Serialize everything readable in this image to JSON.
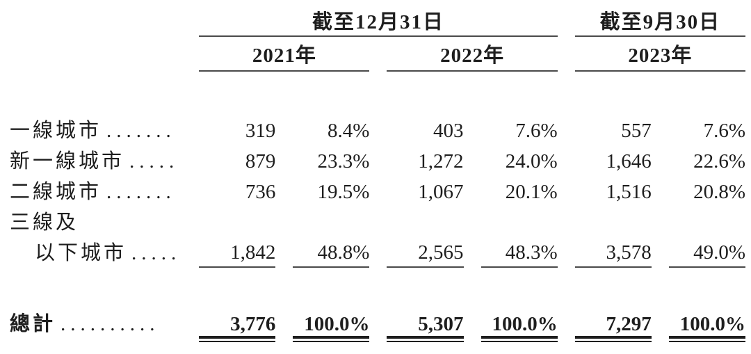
{
  "document": {
    "ink_color": "#1e1e1e",
    "rule_color": "#4a4a4a"
  },
  "table": {
    "header": {
      "groups": [
        {
          "title": "截至12月31日",
          "years": [
            "2021年",
            "2022年"
          ]
        },
        {
          "title": "截至9月30日",
          "years": [
            "2023年"
          ]
        }
      ]
    },
    "rows": [
      {
        "label": "一線城市",
        "leader": ".......",
        "values": [
          "319",
          "8.4%",
          "403",
          "7.6%",
          "557",
          "7.6%"
        ]
      },
      {
        "label": "新一線城市",
        "leader": ".....",
        "values": [
          "879",
          "23.3%",
          "1,272",
          "24.0%",
          "1,646",
          "22.6%"
        ]
      },
      {
        "label": "二線城市",
        "leader": ".......",
        "values": [
          "736",
          "19.5%",
          "1,067",
          "20.1%",
          "1,516",
          "20.8%"
        ]
      },
      {
        "label_line1": "三線及",
        "label_line2": "以下城市",
        "leader": ".....",
        "values": [
          "1,842",
          "48.8%",
          "2,565",
          "48.3%",
          "3,578",
          "49.0%"
        ]
      }
    ],
    "total": {
      "label": "總計",
      "leader": "..........",
      "values": [
        "3,776",
        "100.0%",
        "5,307",
        "100.0%",
        "7,297",
        "100.0%"
      ]
    }
  }
}
